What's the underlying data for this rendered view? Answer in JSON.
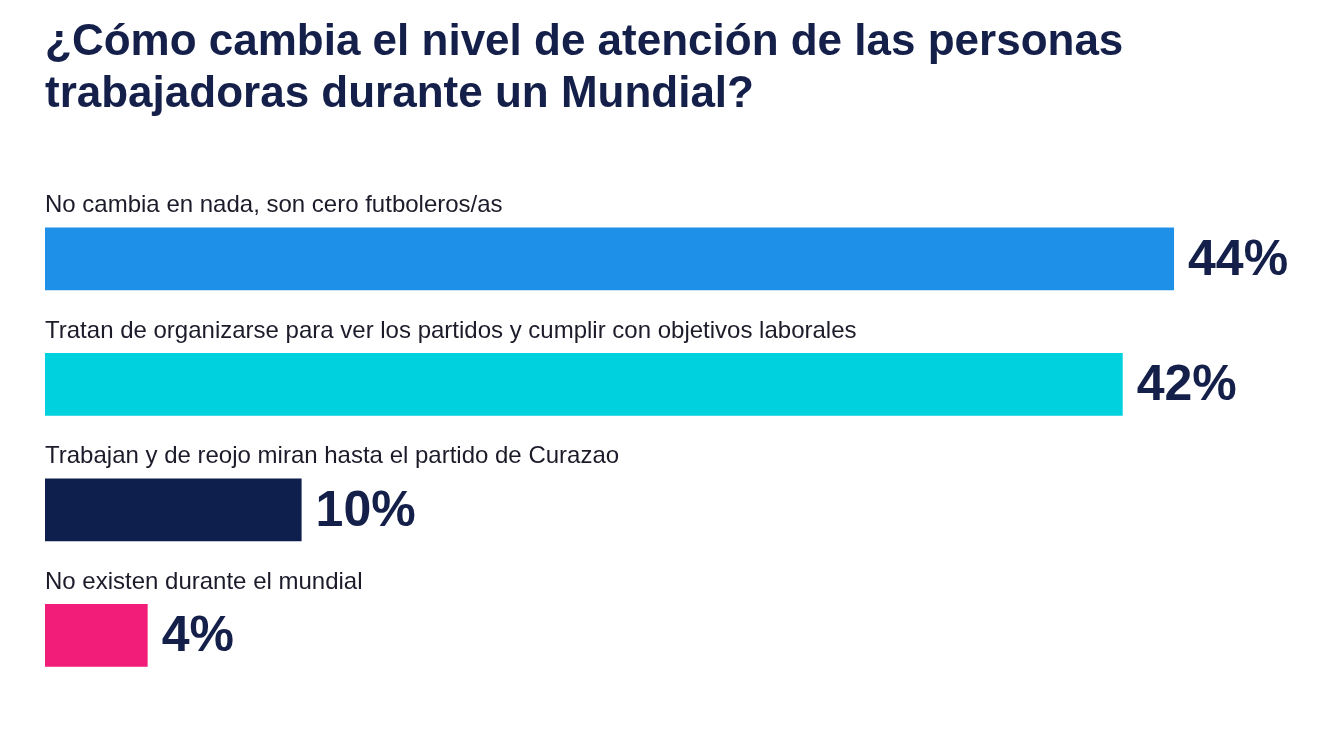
{
  "chart_data": {
    "type": "bar",
    "orientation": "horizontal",
    "title": "¿Cómo cambia el nivel de atención de las personas trabajadoras durante un Mundial?",
    "categories": [
      "No cambia en nada, son cero futboleros/as",
      "Tratan de organizarse para ver los partidos y cumplir con objetivos laborales",
      "Trabajan y de reojo miran hasta el partido de Curazao",
      "No existen durante el mundial"
    ],
    "values": [
      44,
      42,
      10,
      4
    ],
    "value_labels": [
      "44%",
      "42%",
      "10%",
      "4%"
    ],
    "colors": [
      "#1e90e8",
      "#00d1de",
      "#0f1f4d",
      "#f21d78"
    ],
    "xlim": [
      0,
      50
    ],
    "tick_labels": false,
    "legend": false
  }
}
